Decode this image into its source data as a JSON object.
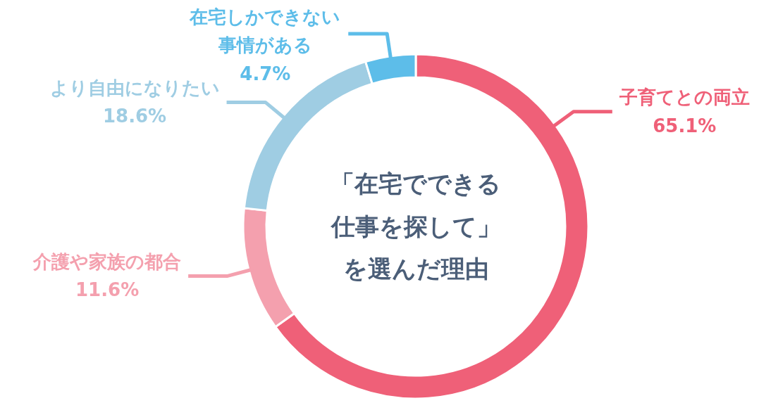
{
  "chart_data": {
    "type": "donut",
    "title": "「在宅でできる仕事を探して」を選んだ理由",
    "categories": [
      "子育てとの両立",
      "介護や家族の都合",
      "より自由になりたい",
      "在宅しかできない事情がある"
    ],
    "values": [
      65.1,
      11.6,
      18.6,
      4.7
    ],
    "value_labels": [
      "65.1%",
      "11.6%",
      "18.6%",
      "4.7%"
    ],
    "colors": [
      "#ef6078",
      "#f4a0ae",
      "#9fcde3",
      "#5dbde9"
    ]
  }
}
